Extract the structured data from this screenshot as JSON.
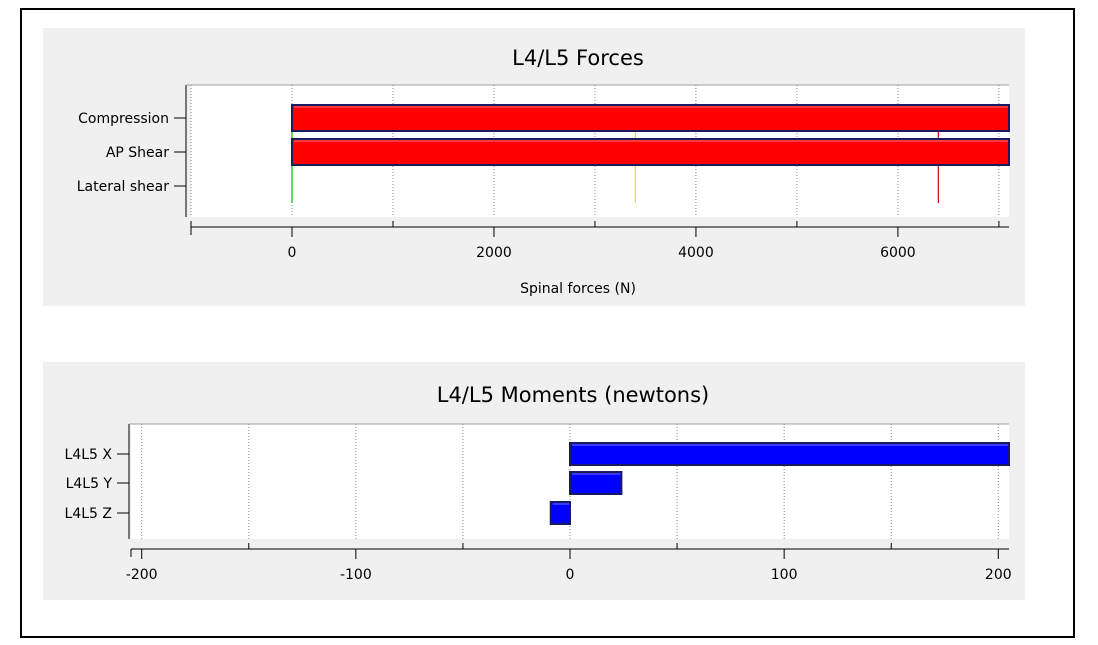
{
  "chart_data": [
    {
      "type": "bar",
      "orientation": "horizontal",
      "title": "L4/L5 Forces",
      "xlabel": "Spinal forces (N)",
      "ylabel": "",
      "categories": [
        "Compression",
        "AP Shear",
        "Lateral shear"
      ],
      "values": [
        7200,
        7200,
        0
      ],
      "xlim": [
        -1000,
        7100
      ],
      "xticks": [
        "0",
        "2000",
        "4000",
        "6000"
      ],
      "xtick_values": [
        0,
        2000,
        4000,
        6000
      ],
      "grid": true,
      "bar_color": "#ff0000",
      "reference_lines": [
        {
          "value": 0,
          "color": "#00c000"
        },
        {
          "value": 3400,
          "color": "#e6e600"
        },
        {
          "value": 6400,
          "color": "#d00000"
        }
      ]
    },
    {
      "type": "bar",
      "orientation": "horizontal",
      "title": "L4/L5 Moments (newtons)",
      "xlabel": "",
      "ylabel": "",
      "categories": [
        "L4L5 X",
        "L4L5 Y",
        "L4L5 Z"
      ],
      "values": [
        210,
        24,
        -9
      ],
      "xlim": [
        -205,
        205
      ],
      "xticks": [
        "-200",
        "-100",
        "0",
        "100",
        "200"
      ],
      "xtick_values": [
        -200,
        -100,
        0,
        100,
        200
      ],
      "grid": true,
      "bar_color": "#0000ff"
    }
  ]
}
